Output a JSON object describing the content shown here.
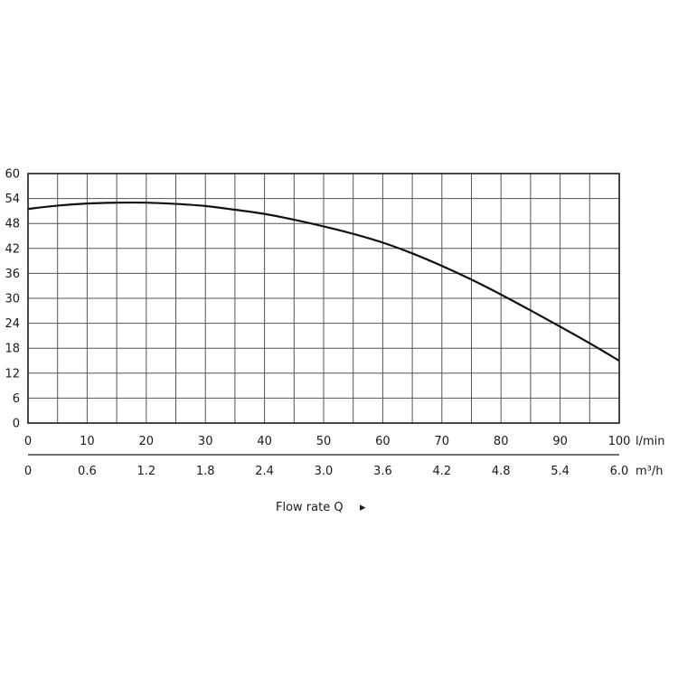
{
  "chart_data": {
    "type": "line",
    "title": "",
    "xlabel": "Flow rate Q",
    "xlabel_arrow": "▸",
    "ylabel": "",
    "x_unit_primary": "l/min",
    "x_unit_secondary": "m³/h",
    "xlim": [
      0,
      100
    ],
    "ylim": [
      0,
      60
    ],
    "x_ticks": [
      0,
      10,
      20,
      30,
      40,
      50,
      60,
      70,
      80,
      90,
      100
    ],
    "x_ticks_secondary": [
      "0",
      "0.6",
      "1.2",
      "1.8",
      "2.4",
      "3.0",
      "3.6",
      "4.2",
      "4.8",
      "5.4",
      "6.0"
    ],
    "y_ticks": [
      0,
      6,
      12,
      18,
      24,
      30,
      36,
      42,
      48,
      54,
      60
    ],
    "x_grid": [
      0,
      5,
      10,
      15,
      20,
      25,
      30,
      35,
      40,
      45,
      50,
      55,
      60,
      65,
      70,
      75,
      80,
      85,
      90,
      95,
      100
    ],
    "grid": true,
    "series": [
      {
        "x": [
          0,
          5,
          10,
          15,
          20,
          25,
          30,
          35,
          40,
          45,
          50,
          55,
          60,
          65,
          70,
          75,
          80,
          85,
          90,
          95,
          100
        ],
        "y": [
          51.5,
          52.3,
          52.8,
          53.0,
          53.0,
          52.7,
          52.2,
          51.3,
          50.3,
          48.9,
          47.3,
          45.5,
          43.4,
          40.8,
          37.8,
          34.5,
          30.9,
          27.1,
          23.2,
          19.2,
          15.0
        ]
      }
    ]
  }
}
